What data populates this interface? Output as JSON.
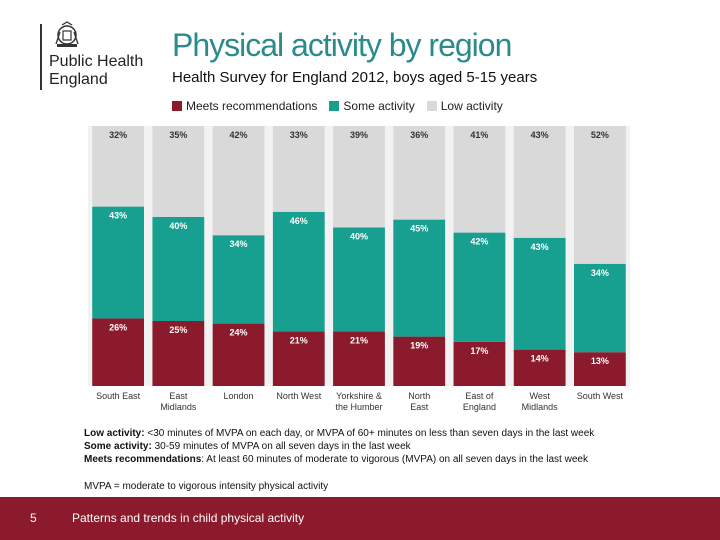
{
  "logo": {
    "line1": "Public Health",
    "line2": "England"
  },
  "chart_data": {
    "type": "bar",
    "stacked": true,
    "title": "Physical activity by region",
    "subtitle": "Health Survey for England 2012, boys aged 5-15 years",
    "categories": [
      "South East",
      "East Midlands",
      "London",
      "North West",
      "Yorkshire & the Humber",
      "North East",
      "East of England",
      "West Midlands",
      "South West"
    ],
    "category_lines": [
      [
        "South East"
      ],
      [
        "East",
        "Midlands"
      ],
      [
        "London"
      ],
      [
        "North West"
      ],
      [
        "Yorkshire &",
        "the Humber"
      ],
      [
        "North",
        "East"
      ],
      [
        "East of",
        "England"
      ],
      [
        "West",
        "Midlands"
      ],
      [
        "South West"
      ]
    ],
    "series": [
      {
        "name": "Meets recommendations",
        "color": "#8b1a2c",
        "values": [
          26,
          25,
          24,
          21,
          21,
          19,
          17,
          14,
          13
        ]
      },
      {
        "name": "Some activity",
        "color": "#17a090",
        "values": [
          43,
          40,
          34,
          46,
          40,
          45,
          42,
          43,
          34
        ]
      },
      {
        "name": "Low activity",
        "color": "#d9d9d9",
        "values": [
          32,
          35,
          42,
          33,
          39,
          36,
          41,
          43,
          52
        ]
      }
    ],
    "ylim": [
      0,
      100
    ],
    "legend_position": "top",
    "grid": false
  },
  "notes": {
    "low_label": "Low activity:",
    "low_text": " <30 minutes of MVPA on each day, or MVPA of 60+ minutes on less than seven days in the last week",
    "some_label": "Some activity:",
    "some_text": " 30-59 minutes of MVPA on all seven days in the last week",
    "meets_label": "Meets recommendations",
    "meets_text": ": At least 60 minutes of moderate to vigorous (MVPA) on all seven days in the last week",
    "mvpa": "MVPA = moderate to vigorous intensity physical activity"
  },
  "footer": {
    "page": "5",
    "text": "Patterns and trends in child physical activity"
  }
}
